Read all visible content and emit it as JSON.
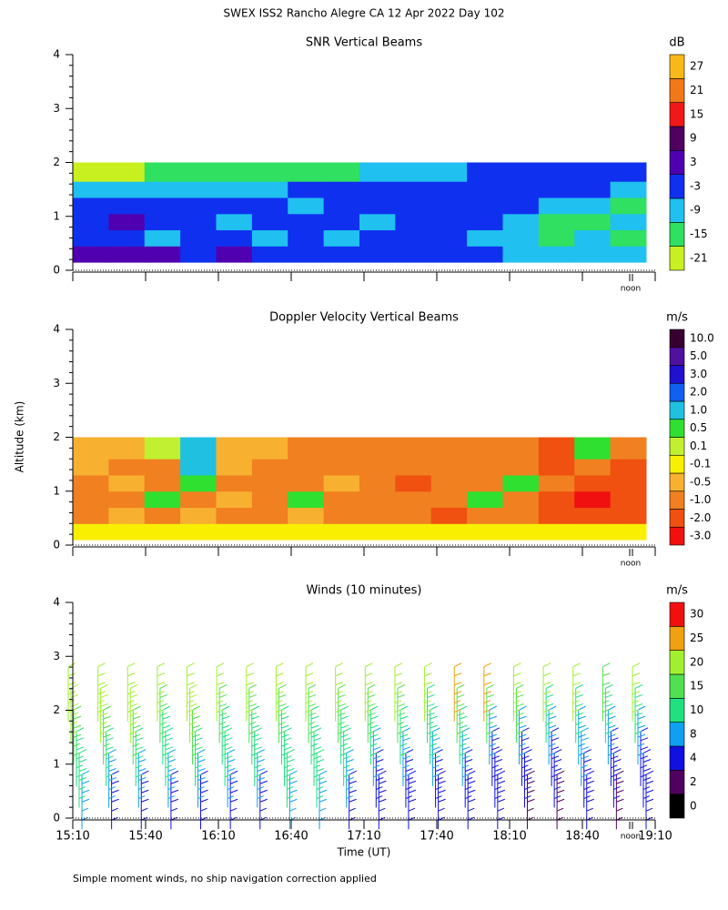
{
  "title": "SWEX ISS2 Rancho Alegre CA  12 Apr 2022 Day 102",
  "ylabel": "Altitude (km)",
  "xlabel": "Time (UT)",
  "footnote": "Simple moment winds, no ship navigation correction applied",
  "chart_data": [
    {
      "type": "heatmap",
      "title": "SNR Vertical Beams",
      "colorbar_label": "dB",
      "colorbar_ticks": [
        -21,
        -15,
        -9,
        -3,
        3,
        9,
        15,
        21,
        27
      ],
      "colorbar_colors": [
        "#c8f020",
        "#30e060",
        "#20c0f0",
        "#1030f0",
        "#5000b0",
        "#500060",
        "#f01818",
        "#f07818",
        "#f8b818"
      ],
      "ylim": [
        0,
        4
      ],
      "yticks": [
        0,
        1,
        2,
        3,
        4
      ],
      "annotation": "noon",
      "y_edges": [
        0.15,
        0.45,
        0.75,
        1.05,
        1.35,
        1.65,
        2.0
      ],
      "z": [
        [
          3,
          3,
          3,
          -3,
          3,
          -3,
          -3,
          -3,
          -3,
          -3,
          -3,
          -3,
          -9,
          -9,
          -9,
          -9
        ],
        [
          -3,
          -3,
          -9,
          -3,
          -3,
          -9,
          -3,
          -9,
          -3,
          -3,
          -3,
          -9,
          -9,
          -15,
          -9,
          -15
        ],
        [
          -3,
          3,
          -3,
          -3,
          -9,
          -3,
          -3,
          -3,
          -9,
          -3,
          -3,
          -3,
          -9,
          -15,
          -15,
          -9
        ],
        [
          -3,
          -3,
          -3,
          -3,
          -3,
          -3,
          -9,
          -3,
          -3,
          -3,
          -3,
          -3,
          -3,
          -9,
          -9,
          -15
        ],
        [
          -9,
          -9,
          -9,
          -9,
          -9,
          -9,
          -3,
          -3,
          -3,
          -3,
          -3,
          -3,
          -3,
          -3,
          -3,
          -9
        ],
        [
          -21,
          -21,
          -15,
          -15,
          -15,
          -15,
          -15,
          -15,
          -9,
          -9,
          -9,
          -3,
          -3,
          -3,
          -3,
          -3
        ]
      ]
    },
    {
      "type": "heatmap",
      "title": "Doppler Velocity Vertical Beams",
      "colorbar_label": "m/s",
      "colorbar_ticks": [
        {
          "value": -3,
          "label": "-3.0"
        },
        {
          "value": -2,
          "label": "-2.0"
        },
        {
          "value": -1,
          "label": "-1.0"
        },
        -0.5,
        -0.1,
        0.1,
        0.5,
        {
          "value": 1,
          "label": "1.0"
        },
        {
          "value": 2,
          "label": "2.0"
        },
        {
          "value": 3,
          "label": "3.0"
        },
        {
          "value": 5,
          "label": "5.0"
        },
        {
          "value": 10,
          "label": "10.0"
        }
      ],
      "colorbar_colors": [
        "#f01010",
        "#f05010",
        "#f08020",
        "#f8b030",
        "#f8f000",
        "#c0f030",
        "#30e030",
        "#20c0e0",
        "#1060f0",
        "#2010d0",
        "#5010a0",
        "#380030"
      ],
      "ylim": [
        0,
        4
      ],
      "yticks": [
        0,
        1,
        2,
        3,
        4
      ],
      "annotation": "noon",
      "y_edges": [
        0.1,
        0.4,
        0.7,
        1.0,
        1.3,
        1.6,
        2.0
      ],
      "z": [
        [
          -0.1,
          -0.1,
          -0.1,
          -0.1,
          -0.1,
          -0.1,
          -0.1,
          -0.1,
          -0.1,
          -0.1,
          -0.1,
          -0.1,
          -0.1,
          -0.1,
          -0.1,
          -0.1
        ],
        [
          -1,
          -0.5,
          -1,
          -0.5,
          -1,
          -1,
          -0.5,
          -1,
          -1,
          -1,
          -2,
          -1,
          -1,
          -2,
          -2,
          -2
        ],
        [
          -1,
          -1,
          0.5,
          -1,
          -0.5,
          -1,
          0.5,
          -1,
          -1,
          -1,
          -1,
          0.5,
          -1,
          -2,
          -3,
          -2
        ],
        [
          -1,
          -0.5,
          -1,
          0.5,
          -1,
          -1,
          -1,
          -0.5,
          -1,
          -2,
          -1,
          -1,
          0.5,
          -1,
          -2,
          -2
        ],
        [
          -0.5,
          -1,
          -1,
          1,
          -0.5,
          -1,
          -1,
          -1,
          -1,
          -1,
          -1,
          -1,
          -1,
          -2,
          -1,
          -2
        ],
        [
          -0.5,
          -0.5,
          0.1,
          1,
          -0.5,
          -0.5,
          -1,
          -1,
          -1,
          -1,
          -1,
          -1,
          -1,
          -2,
          0.5,
          -1
        ]
      ]
    },
    {
      "type": "barbs",
      "title": "Winds (10 minutes)",
      "colorbar_label": "m/s",
      "colorbar_ticks": [
        0,
        2,
        4,
        8,
        10,
        15,
        20,
        25,
        30
      ],
      "colorbar_colors": [
        "#000000",
        "#500060",
        "#1010e0",
        "#10a0f0",
        "#20e080",
        "#50e050",
        "#a0f030",
        "#f0a010",
        "#f01010"
      ],
      "ylim": [
        0,
        4
      ],
      "yticks": [
        0,
        1,
        2,
        3,
        4
      ],
      "annotation": "noon",
      "xticks": [
        "15:10",
        "15:40",
        "16:10",
        "16:40",
        "17:10",
        "17:40",
        "18:10",
        "18:40",
        "19:10"
      ],
      "heights": [
        0.3,
        0.7,
        1.1,
        1.5,
        1.9,
        2.3
      ],
      "speeds": [
        [
          8,
          10,
          12,
          15,
          18,
          20
        ],
        [
          4,
          8,
          10,
          15,
          18,
          20
        ],
        [
          4,
          8,
          12,
          15,
          18,
          20
        ],
        [
          4,
          8,
          10,
          12,
          15,
          20
        ],
        [
          4,
          8,
          10,
          15,
          18,
          20
        ],
        [
          4,
          8,
          10,
          12,
          15,
          20
        ],
        [
          4,
          8,
          10,
          12,
          15,
          20
        ],
        [
          8,
          10,
          10,
          12,
          15,
          20
        ],
        [
          8,
          10,
          10,
          12,
          15,
          20
        ],
        [
          4,
          8,
          10,
          10,
          15,
          20
        ],
        [
          4,
          4,
          8,
          10,
          15,
          20
        ],
        [
          4,
          4,
          8,
          10,
          15,
          20
        ],
        [
          4,
          4,
          8,
          10,
          12,
          20
        ],
        [
          4,
          4,
          8,
          10,
          15,
          25
        ],
        [
          4,
          4,
          4,
          8,
          15,
          25
        ],
        [
          2,
          4,
          4,
          8,
          15,
          20
        ],
        [
          2,
          4,
          4,
          8,
          10,
          20
        ],
        [
          4,
          4,
          8,
          8,
          10,
          20
        ],
        [
          2,
          4,
          4,
          8,
          10,
          15
        ],
        [
          4,
          4,
          4,
          8,
          10,
          20
        ]
      ]
    }
  ]
}
